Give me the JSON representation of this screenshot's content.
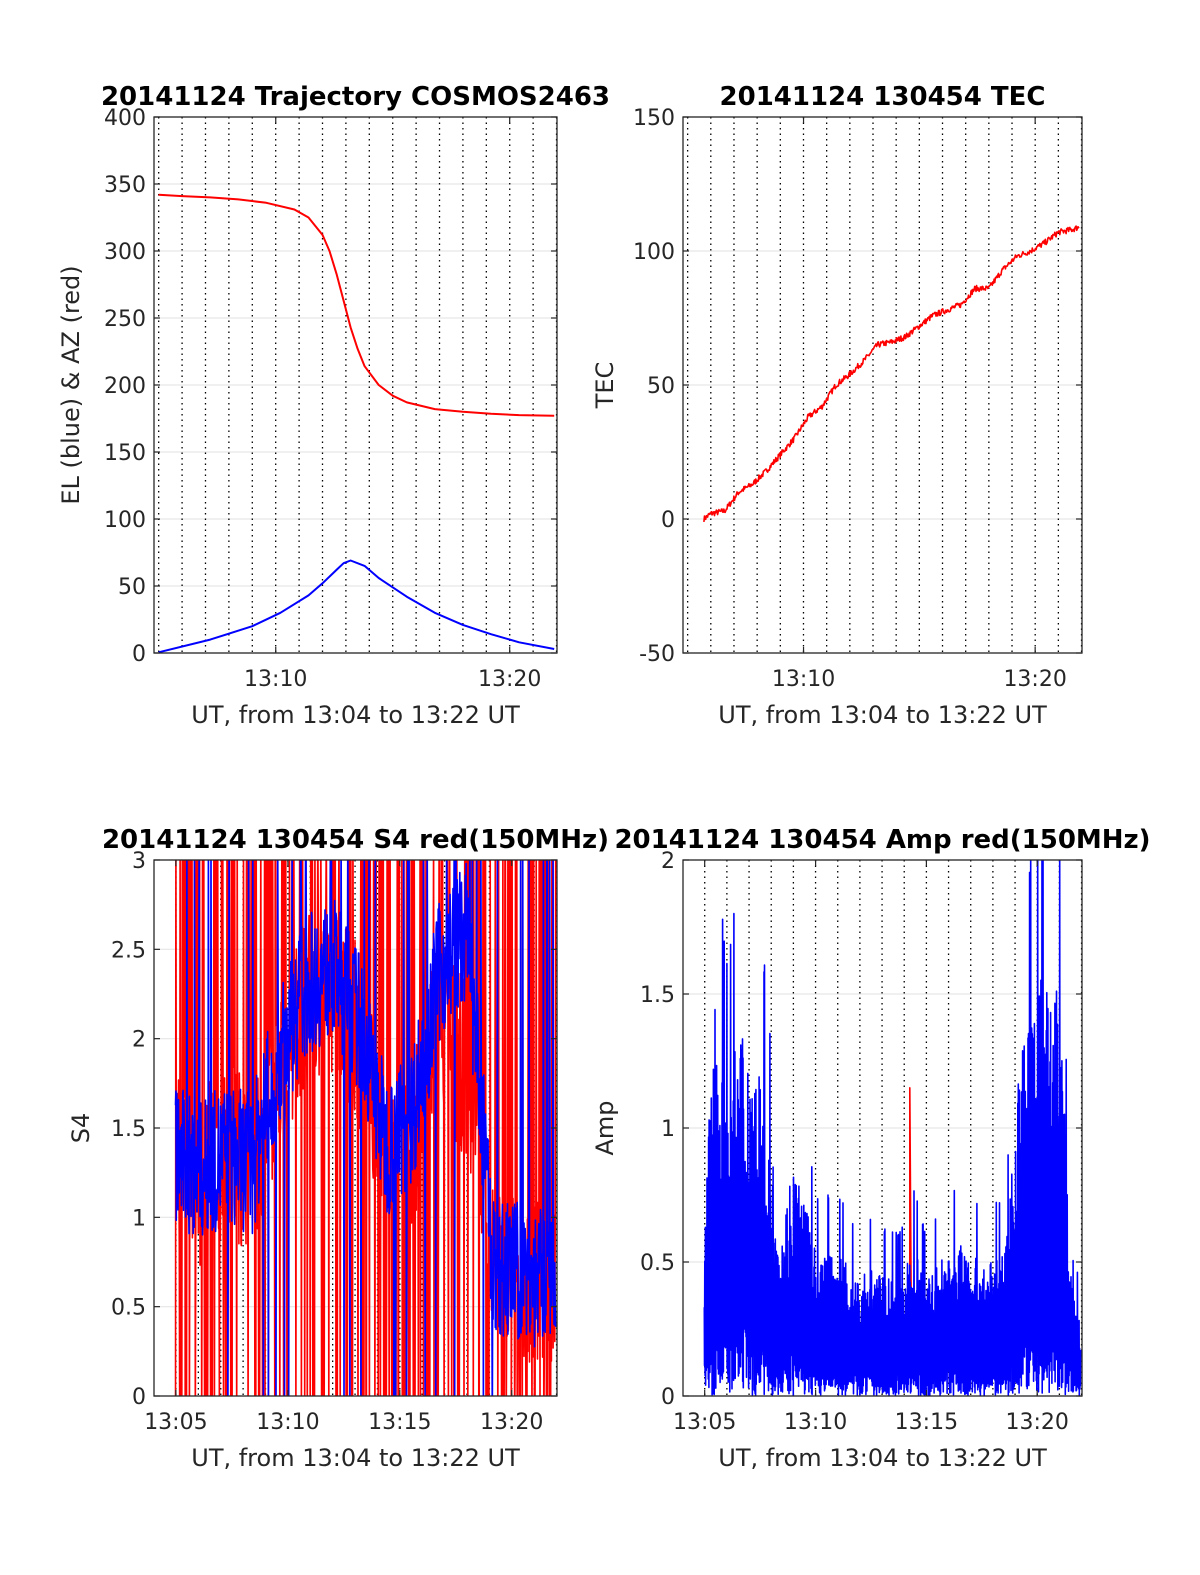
{
  "chart_data": [
    {
      "type": "line",
      "title": "20141124 Trajectory COSMOS2463",
      "xlabel": "UT, from 13:04 to 13:22 UT",
      "ylabel": "EL (blue) & AZ (red)",
      "xlim": [
        13.08,
        13.367
      ],
      "ylim": [
        0,
        400
      ],
      "xticks": [
        {
          "v": 13.1667,
          "label": "13:10"
        },
        {
          "v": 13.3333,
          "label": "13:20"
        }
      ],
      "yticks": [
        0,
        50,
        100,
        150,
        200,
        250,
        300,
        350,
        400
      ],
      "grid": "y-solid, x-dotted-minute",
      "series": [
        {
          "color": "#ff0000",
          "x": [
            13.0833,
            13.1,
            13.12,
            13.14,
            13.16,
            13.18,
            13.19,
            13.2,
            13.205,
            13.21,
            13.215,
            13.22,
            13.225,
            13.23,
            13.24,
            13.25,
            13.26,
            13.28,
            13.3,
            13.32,
            13.34,
            13.365
          ],
          "y": [
            342,
            341,
            340,
            338.5,
            336,
            331,
            325,
            312,
            300,
            283,
            263,
            243,
            227,
            214,
            200,
            192,
            187,
            182,
            180,
            178.5,
            177.5,
            177
          ]
        },
        {
          "color": "#0000ff",
          "x": [
            13.0833,
            13.12,
            13.15,
            13.17,
            13.19,
            13.2,
            13.21,
            13.215,
            13.22,
            13.23,
            13.24,
            13.26,
            13.28,
            13.3,
            13.32,
            13.34,
            13.365
          ],
          "y": [
            0.5,
            10,
            20,
            30,
            43,
            52,
            62,
            67,
            69,
            65,
            56,
            42,
            30,
            21,
            14,
            8,
            3
          ]
        }
      ]
    },
    {
      "type": "line",
      "title": "20141124 130454 TEC",
      "xlabel": "UT, from 13:04 to 13:22 UT",
      "ylabel": "TEC",
      "xlim": [
        13.08,
        13.367
      ],
      "ylim": [
        -50,
        150
      ],
      "xticks": [
        {
          "v": 13.1667,
          "label": "13:10"
        },
        {
          "v": 13.3333,
          "label": "13:20"
        }
      ],
      "yticks": [
        -50,
        0,
        50,
        100,
        150
      ],
      "grid": "y-solid, x-dotted-minute",
      "series": [
        {
          "color": "#ff0000",
          "x": [
            13.095,
            13.1,
            13.11,
            13.12,
            13.13,
            13.14,
            13.15,
            13.16,
            13.17,
            13.18,
            13.19,
            13.2,
            13.21,
            13.22,
            13.23,
            13.24,
            13.25,
            13.26,
            13.27,
            13.28,
            13.29,
            13.3,
            13.31,
            13.32,
            13.33,
            13.34,
            13.35,
            13.36,
            13.365
          ],
          "y": [
            0,
            2,
            3,
            10,
            13,
            18,
            24,
            30,
            38,
            42,
            50,
            54,
            59,
            65,
            66,
            68,
            72,
            76,
            78,
            80,
            86,
            86,
            93,
            98,
            100,
            103,
            107,
            108,
            109
          ]
        }
      ]
    },
    {
      "type": "line",
      "title": "20141124 130454 S4 red(150MHz)",
      "xlabel": "UT, from 13:04 to 13:22 UT",
      "ylabel": "S4",
      "xlim": [
        13.067,
        13.367
      ],
      "ylim": [
        0,
        3
      ],
      "xticks": [
        {
          "v": 13.0833,
          "label": "13:05"
        },
        {
          "v": 13.1667,
          "label": "13:10"
        },
        {
          "v": 13.25,
          "label": "13:15"
        },
        {
          "v": 13.3333,
          "label": "13:20"
        }
      ],
      "yticks": [
        0,
        0.5,
        1,
        1.5,
        2,
        2.5,
        3
      ],
      "grid": "y-solid, x-dotted-minute",
      "series": [
        {
          "color": "#ff0000",
          "x": [
            13.083,
            13.1,
            13.12,
            13.14,
            13.16,
            13.18,
            13.2,
            13.22,
            13.24,
            13.26,
            13.28,
            13.3,
            13.32,
            13.34,
            13.366
          ],
          "y": [
            1.3,
            1.2,
            1.4,
            1.3,
            1.8,
            2.2,
            2.3,
            2.0,
            1.3,
            1.4,
            2.1,
            1.8,
            0.7,
            0.65,
            0.6
          ]
        },
        {
          "color": "#0000ff",
          "x": [
            13.083,
            13.1,
            13.12,
            13.14,
            13.16,
            13.18,
            13.2,
            13.22,
            13.24,
            13.26,
            13.28,
            13.3,
            13.32,
            13.34,
            13.366
          ],
          "y": [
            1.35,
            1.25,
            1.35,
            1.3,
            1.9,
            2.3,
            2.4,
            2.1,
            1.4,
            1.6,
            2.4,
            2.6,
            0.7,
            0.7,
            0.6
          ]
        }
      ]
    },
    {
      "type": "line",
      "title": "20141124 130454 Amp red(150MHz)",
      "xlabel": "UT, from 13:04 to 13:22 UT",
      "ylabel": "Amp",
      "xlim": [
        13.067,
        13.367
      ],
      "ylim": [
        0,
        2
      ],
      "xticks": [
        {
          "v": 13.0833,
          "label": "13:05"
        },
        {
          "v": 13.1667,
          "label": "13:10"
        },
        {
          "v": 13.25,
          "label": "13:15"
        },
        {
          "v": 13.3333,
          "label": "13:20"
        }
      ],
      "yticks": [
        0,
        0.5,
        1,
        1.5,
        2
      ],
      "grid": "y-solid, x-dotted-minute",
      "series": [
        {
          "color": "#ff0000",
          "x": [
            13.2375
          ],
          "y": [
            1.15
          ]
        },
        {
          "color": "#0000ff",
          "x": [
            13.083,
            13.09,
            13.1,
            13.11,
            13.12,
            13.13,
            13.14,
            13.15,
            13.16,
            13.17,
            13.18,
            13.19,
            13.2,
            13.21,
            13.22,
            13.23,
            13.24,
            13.25,
            13.26,
            13.27,
            13.28,
            13.29,
            13.3,
            13.31,
            13.32,
            13.33,
            13.34,
            13.35,
            13.36,
            13.366
          ],
          "y": [
            0.45,
            1.2,
            0.95,
            1.1,
            1.0,
            0.9,
            0.45,
            0.7,
            0.55,
            0.4,
            0.45,
            0.4,
            0.35,
            0.4,
            0.35,
            0.35,
            0.45,
            0.35,
            0.4,
            0.45,
            0.45,
            0.4,
            0.4,
            0.45,
            1.0,
            1.2,
            1.3,
            1.2,
            0.3,
            0.25
          ]
        }
      ]
    }
  ]
}
